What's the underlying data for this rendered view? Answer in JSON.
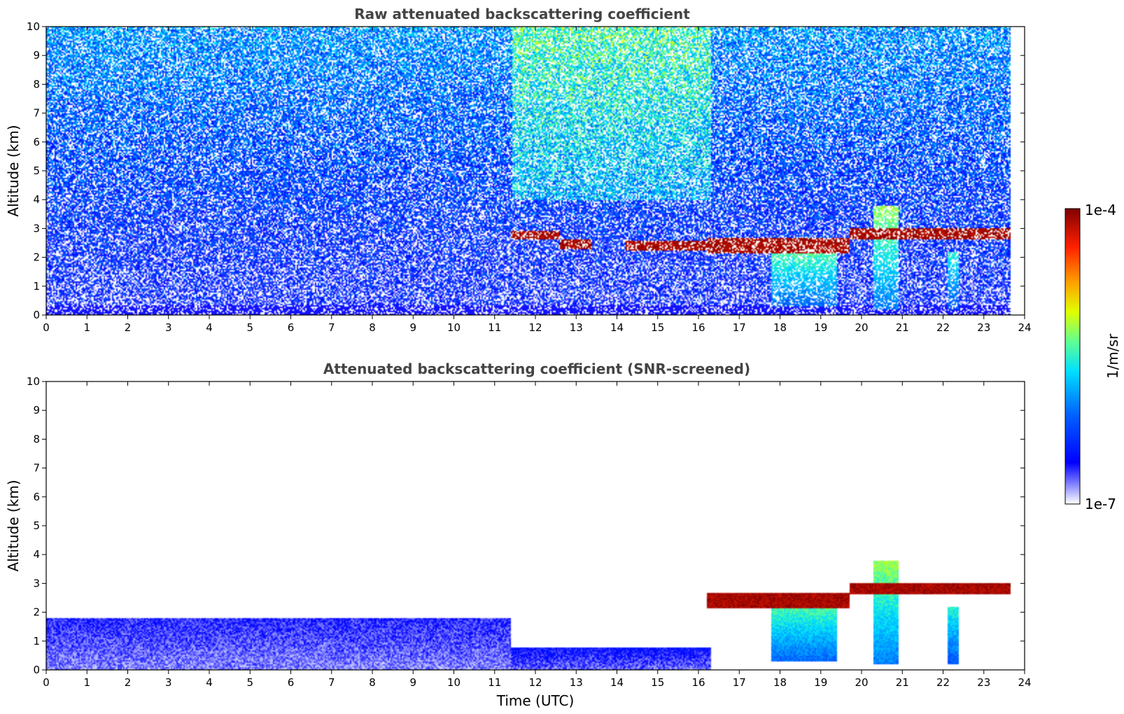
{
  "chart_data": [
    {
      "type": "heatmap",
      "title": "Raw attenuated backscattering coefficient",
      "xlabel": "",
      "ylabel": "Altitude (km)",
      "xlim": [
        0,
        24
      ],
      "ylim": [
        0,
        10
      ],
      "xticks": [
        "0",
        "1",
        "2",
        "3",
        "4",
        "5",
        "6",
        "7",
        "8",
        "9",
        "10",
        "11",
        "12",
        "13",
        "14",
        "15",
        "16",
        "17",
        "18",
        "19",
        "20",
        "21",
        "22",
        "23",
        "24"
      ],
      "yticks": [
        "0",
        "1",
        "2",
        "3",
        "4",
        "5",
        "6",
        "7",
        "8",
        "9",
        "10"
      ],
      "data_end_time": 23.65,
      "grid": false,
      "colorscale": "jet",
      "features": [
        {
          "t0": 11.45,
          "t1": 16.3,
          "z0": 4.0,
          "z1": 10.0,
          "level": 0.5
        },
        {
          "t0": 11.4,
          "t1": 12.6,
          "z": 2.75,
          "thickness": 0.15,
          "level": 1.0
        },
        {
          "t0": 12.6,
          "t1": 13.4,
          "z": 2.45,
          "thickness": 0.15,
          "level": 1.0
        },
        {
          "t0": 14.2,
          "t1": 16.2,
          "z": 2.4,
          "thickness": 0.15,
          "level": 1.0
        },
        {
          "t0": 16.2,
          "t1": 19.7,
          "z": 2.4,
          "thickness": 0.25,
          "level": 1.0
        },
        {
          "t0": 19.7,
          "t1": 23.65,
          "z": 2.8,
          "thickness": 0.2,
          "level": 1.0
        },
        {
          "t0": 17.8,
          "t1": 19.4,
          "z0": 0.3,
          "z1": 2.3,
          "level": 0.55
        },
        {
          "t0": 20.3,
          "t1": 20.9,
          "z0": 0.2,
          "z1": 3.8,
          "level": 0.6
        },
        {
          "t0": 22.1,
          "t1": 22.4,
          "z0": 0.2,
          "z1": 2.2,
          "level": 0.5
        }
      ]
    },
    {
      "type": "heatmap",
      "title": "Attenuated backscattering coefficient (SNR-screened)",
      "xlabel": "Time (UTC)",
      "ylabel": "Altitude (km)",
      "xlim": [
        0,
        24
      ],
      "ylim": [
        0,
        10
      ],
      "xticks": [
        "0",
        "1",
        "2",
        "3",
        "4",
        "5",
        "6",
        "7",
        "8",
        "9",
        "10",
        "11",
        "12",
        "13",
        "14",
        "15",
        "16",
        "17",
        "18",
        "19",
        "20",
        "21",
        "22",
        "23",
        "24"
      ],
      "yticks": [
        "0",
        "1",
        "2",
        "3",
        "4",
        "5",
        "6",
        "7",
        "8",
        "9",
        "10"
      ],
      "data_end_time": 23.65,
      "grid": false,
      "colorscale": "jet",
      "features": [
        {
          "t0": 0.0,
          "t1": 11.4,
          "z0": 0.0,
          "z1": 1.8,
          "level": 0.12
        },
        {
          "t0": 11.4,
          "t1": 16.3,
          "z0": 0.0,
          "z1": 0.8,
          "level": 0.15
        },
        {
          "t0": 16.2,
          "t1": 19.7,
          "z": 2.4,
          "thickness": 0.25,
          "level": 1.0
        },
        {
          "t0": 19.7,
          "t1": 23.65,
          "z": 2.8,
          "thickness": 0.2,
          "level": 1.0
        },
        {
          "t0": 17.8,
          "t1": 19.4,
          "z0": 0.3,
          "z1": 2.3,
          "level": 0.55
        },
        {
          "t0": 20.3,
          "t1": 20.9,
          "z0": 0.2,
          "z1": 3.8,
          "level": 0.6
        },
        {
          "t0": 22.1,
          "t1": 22.4,
          "z0": 0.2,
          "z1": 2.2,
          "level": 0.5
        }
      ]
    }
  ],
  "colorbar": {
    "max_label": "1e-4",
    "min_label": "1e-7",
    "label": "1/m/sr",
    "colors": [
      "#ffffff",
      "#c8c8ff",
      "#9696ff",
      "#0000ff",
      "#0080ff",
      "#00ffff",
      "#80ff80",
      "#ffff00",
      "#ff8000",
      "#ff0000",
      "#800000"
    ]
  }
}
